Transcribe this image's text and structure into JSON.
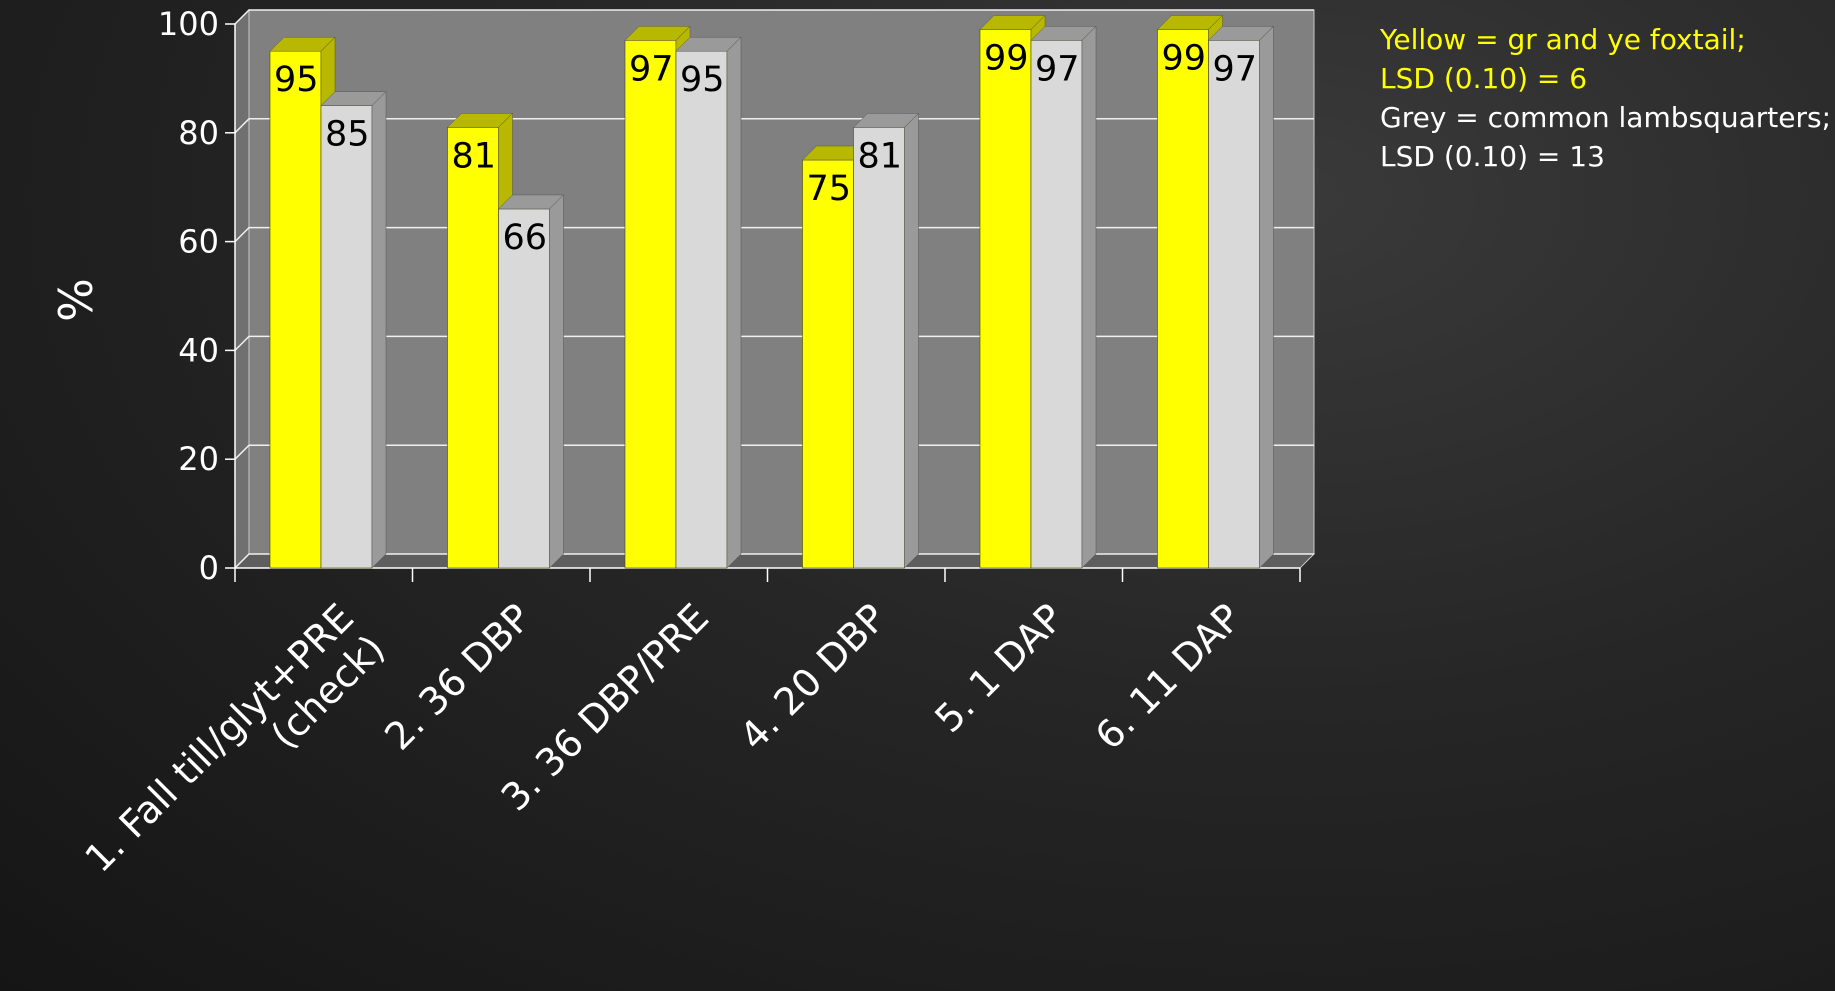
{
  "chart_data": {
    "type": "bar",
    "categories": [
      "1. Fall till/glyt+PRE (check)",
      "2. 36 DBP",
      "3. 36 DBP/PRE",
      "4. 20 DBP",
      "5. 1 DAP",
      "6. 11 DAP"
    ],
    "category_lines": [
      [
        "1. Fall till/glyt+PRE",
        "(check)"
      ],
      [
        "2. 36 DBP"
      ],
      [
        "3. 36 DBP/PRE"
      ],
      [
        "4. 20 DBP"
      ],
      [
        "5. 1 DAP"
      ],
      [
        "6. 11 DAP"
      ]
    ],
    "series": [
      {
        "values": [
          95,
          81,
          97,
          75,
          99,
          99
        ],
        "color": "#ffff00",
        "side_color": "#b8b800"
      },
      {
        "values": [
          85,
          66,
          95,
          81,
          97,
          97
        ],
        "color": "#d9d9d9",
        "side_color": "#9a9a9a"
      }
    ],
    "ylabel": "%",
    "ylim": [
      0,
      100
    ],
    "yticks": [
      "0",
      "20",
      "40",
      "60",
      "80",
      "100"
    ],
    "grid": true,
    "style": "3d-clustered-bar",
    "wall_color": "#808080",
    "legend_position": "top-right"
  },
  "legend": {
    "yellow_line1": "Yellow = gr and ye foxtail;",
    "yellow_line2": "LSD (0.10) = 6",
    "grey_line1": "Grey = common lambsquarters;",
    "grey_line2": "LSD (0.10) = 13"
  }
}
